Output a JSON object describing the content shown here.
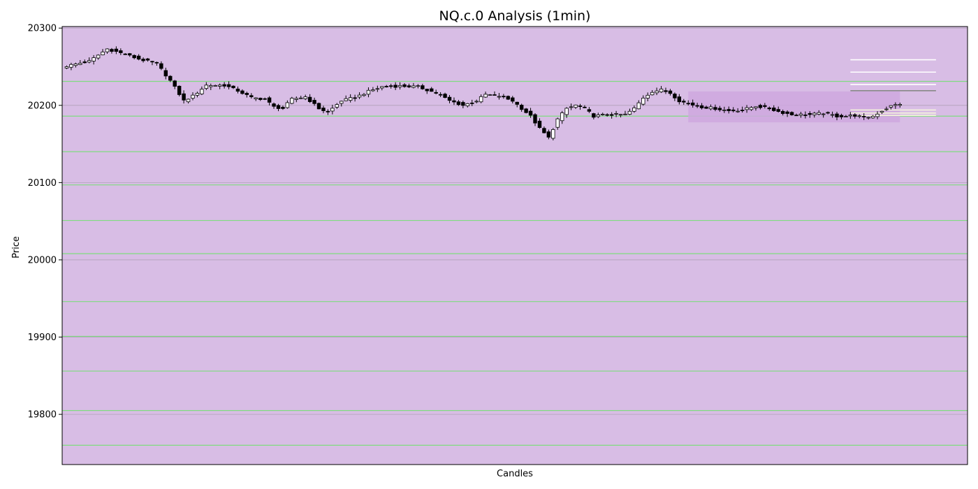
{
  "chart_data": {
    "type": "candlestick",
    "title": "NQ.c.0 Analysis (1min)",
    "xlabel": "Candles",
    "ylabel": "Price",
    "ylim": [
      19735,
      20302
    ],
    "xlim": [
      -1,
      200
    ],
    "y_ticks": [
      19800,
      19900,
      20000,
      20100,
      20200,
      20300
    ],
    "grid": "horizontal",
    "plot_background": "#d8bde5",
    "up_color": "#ffffff",
    "down_color": "#000000",
    "level_color": "#7fdc7f",
    "levels": [
      20231,
      20186,
      20140,
      20097,
      20051,
      20008,
      19946,
      19901,
      19856,
      19805,
      19760
    ],
    "zone": {
      "x_start": 138,
      "x_end": 185,
      "y_low": 20178,
      "y_high": 20218,
      "color": "#cfa8df"
    },
    "projection_lines": [
      {
        "x_start": 174,
        "y": 20259,
        "color": "#ffffff"
      },
      {
        "x_start": 174,
        "y": 20243,
        "color": "#ffffff"
      },
      {
        "x_start": 174,
        "y": 20227,
        "color": "#ffffff"
      },
      {
        "x_start": 174,
        "y": 20219,
        "color": "#888888"
      },
      {
        "x_start": 174,
        "y": 20194,
        "color": "#f5f5dc"
      },
      {
        "x_start": 174,
        "y": 20190,
        "color": "#f5f5dc"
      },
      {
        "x_start": 174,
        "y": 20187,
        "color": "#f5f5dc"
      }
    ],
    "anchors": [
      [
        0,
        20251
      ],
      [
        5,
        20257
      ],
      [
        9,
        20273
      ],
      [
        13,
        20266
      ],
      [
        16,
        20260
      ],
      [
        20,
        20254
      ],
      [
        23,
        20232
      ],
      [
        26,
        20206
      ],
      [
        28,
        20212
      ],
      [
        31,
        20226
      ],
      [
        35,
        20226
      ],
      [
        38,
        20219
      ],
      [
        41,
        20210
      ],
      [
        44,
        20208
      ],
      [
        46,
        20198
      ],
      [
        48,
        20196
      ],
      [
        50,
        20208
      ],
      [
        53,
        20211
      ],
      [
        56,
        20196
      ],
      [
        58,
        20191
      ],
      [
        61,
        20206
      ],
      [
        64,
        20210
      ],
      [
        67,
        20218
      ],
      [
        70,
        20224
      ],
      [
        74,
        20225
      ],
      [
        78,
        20224
      ],
      [
        82,
        20216
      ],
      [
        85,
        20206
      ],
      [
        88,
        20200
      ],
      [
        91,
        20206
      ],
      [
        93,
        20214
      ],
      [
        96,
        20212
      ],
      [
        99,
        20206
      ],
      [
        101,
        20196
      ],
      [
        103,
        20186
      ],
      [
        105,
        20170
      ],
      [
        107,
        20158
      ],
      [
        109,
        20182
      ],
      [
        111,
        20196
      ],
      [
        113,
        20200
      ],
      [
        115,
        20196
      ],
      [
        117,
        20186
      ],
      [
        120,
        20188
      ],
      [
        124,
        20188
      ],
      [
        126,
        20196
      ],
      [
        128,
        20210
      ],
      [
        130,
        20218
      ],
      [
        132,
        20220
      ],
      [
        134,
        20216
      ],
      [
        136,
        20206
      ],
      [
        138,
        20202
      ],
      [
        141,
        20198
      ],
      [
        144,
        20196
      ],
      [
        147,
        20193
      ],
      [
        150,
        20194
      ],
      [
        153,
        20199
      ],
      [
        156,
        20196
      ],
      [
        158,
        20192
      ],
      [
        161,
        20188
      ],
      [
        165,
        20188
      ],
      [
        168,
        20190
      ],
      [
        171,
        20186
      ],
      [
        173,
        20186
      ],
      [
        175,
        20187
      ],
      [
        177,
        20184
      ],
      [
        179,
        20186
      ],
      [
        181,
        20193
      ],
      [
        183,
        20199
      ],
      [
        185,
        20202
      ]
    ],
    "candle_count": 186
  }
}
